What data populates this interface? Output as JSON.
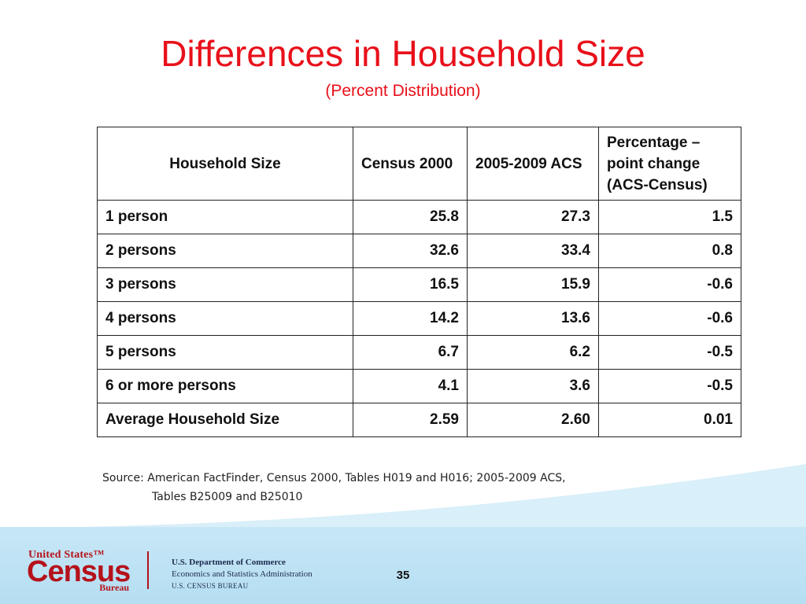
{
  "slide": {
    "title": "Differences in Household Size",
    "subtitle": "(Percent Distribution)",
    "page_number": "35"
  },
  "table": {
    "headers": [
      "Household Size",
      "Census 2000",
      "2005-2009 ACS",
      "Percentage – point change (ACS-Census)"
    ],
    "rows": [
      {
        "label": "1 person",
        "census": "25.8",
        "acs": "27.3",
        "change": "1.5"
      },
      {
        "label": "2 persons",
        "census": "32.6",
        "acs": "33.4",
        "change": "0.8"
      },
      {
        "label": "3 persons",
        "census": "16.5",
        "acs": "15.9",
        "change": "-0.6"
      },
      {
        "label": "4 persons",
        "census": "14.2",
        "acs": "13.6",
        "change": "-0.6"
      },
      {
        "label": "5 persons",
        "census": "6.7",
        "acs": "6.2",
        "change": "-0.5"
      },
      {
        "label": "6 or more persons",
        "census": "4.1",
        "acs": "3.6",
        "change": "-0.5"
      },
      {
        "label": "Average Household Size",
        "census": "2.59",
        "acs": "2.60",
        "change": "0.01"
      }
    ]
  },
  "source": {
    "line1": "Source:  American FactFinder, Census 2000, Tables H019 and H016; 2005-2009 ACS,",
    "line2": "Tables B25009 and B25010"
  },
  "footer": {
    "logo_top": "United States™",
    "logo_main": "Census",
    "logo_bottom": "Bureau",
    "dept_line1": "U.S. Department of Commerce",
    "dept_line2": "Economics and Statistics Administration",
    "dept_line3": "U.S. CENSUS BUREAU"
  },
  "colors": {
    "title": "#e8101a",
    "footer_band": "#bfe3f5",
    "logo": "#b5121b"
  }
}
